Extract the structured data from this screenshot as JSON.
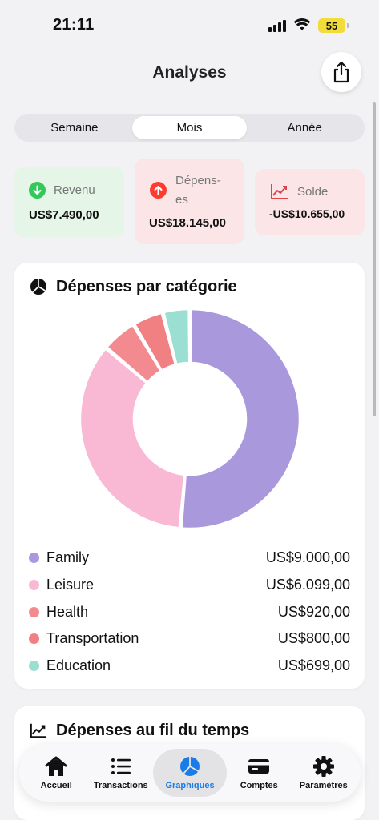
{
  "status_bar": {
    "time": "21:11",
    "battery": "55"
  },
  "header": {
    "title": "Analyses",
    "share_icon": "share-icon"
  },
  "period_tabs": [
    {
      "label": "Semaine",
      "active": false
    },
    {
      "label": "Mois",
      "active": true
    },
    {
      "label": "Année",
      "active": false
    }
  ],
  "summary": {
    "income": {
      "label": "Revenu",
      "amount": "US$7.490,00",
      "color": "#34c759"
    },
    "expenses": {
      "label": "Dépens-es",
      "label_line1": "Dépens-",
      "label_line2": "es",
      "amount": "US$18.145,00",
      "color": "#ff3b30"
    },
    "balance": {
      "label": "Solde",
      "amount": "-US$10.655,00",
      "color": "#e0424a"
    }
  },
  "category_panel": {
    "title": "Dépenses par catégorie",
    "icon": "pie-chart-icon"
  },
  "chart_data": {
    "type": "pie",
    "style": "donut",
    "categories": [
      "Family",
      "Leisure",
      "Health",
      "Transportation",
      "Education"
    ],
    "values": [
      9000.0,
      6099.0,
      920.0,
      800.0,
      699.0
    ],
    "display_values": [
      "US$9.000,00",
      "US$6.099,00",
      "US$920,00",
      "US$800,00",
      "US$699,00"
    ],
    "colors": [
      "#aa98dd",
      "#f9b9d5",
      "#f38a8f",
      "#f08082",
      "#9adfd2"
    ],
    "legend_position": "bottom"
  },
  "time_panel": {
    "title": "Dépenses au fil du temps",
    "icon": "line-chart-icon"
  },
  "tabbar": [
    {
      "label": "Accueil",
      "icon": "home-icon",
      "active": false
    },
    {
      "label": "Transactions",
      "icon": "list-icon",
      "active": false
    },
    {
      "label": "Graphiques",
      "icon": "pie-chart-icon",
      "active": true
    },
    {
      "label": "Comptes",
      "icon": "card-icon",
      "active": false
    },
    {
      "label": "Paramètres",
      "icon": "gear-icon",
      "active": false
    }
  ],
  "colors": {
    "accent": "#1a7ce8",
    "background": "#f2f2f4"
  }
}
